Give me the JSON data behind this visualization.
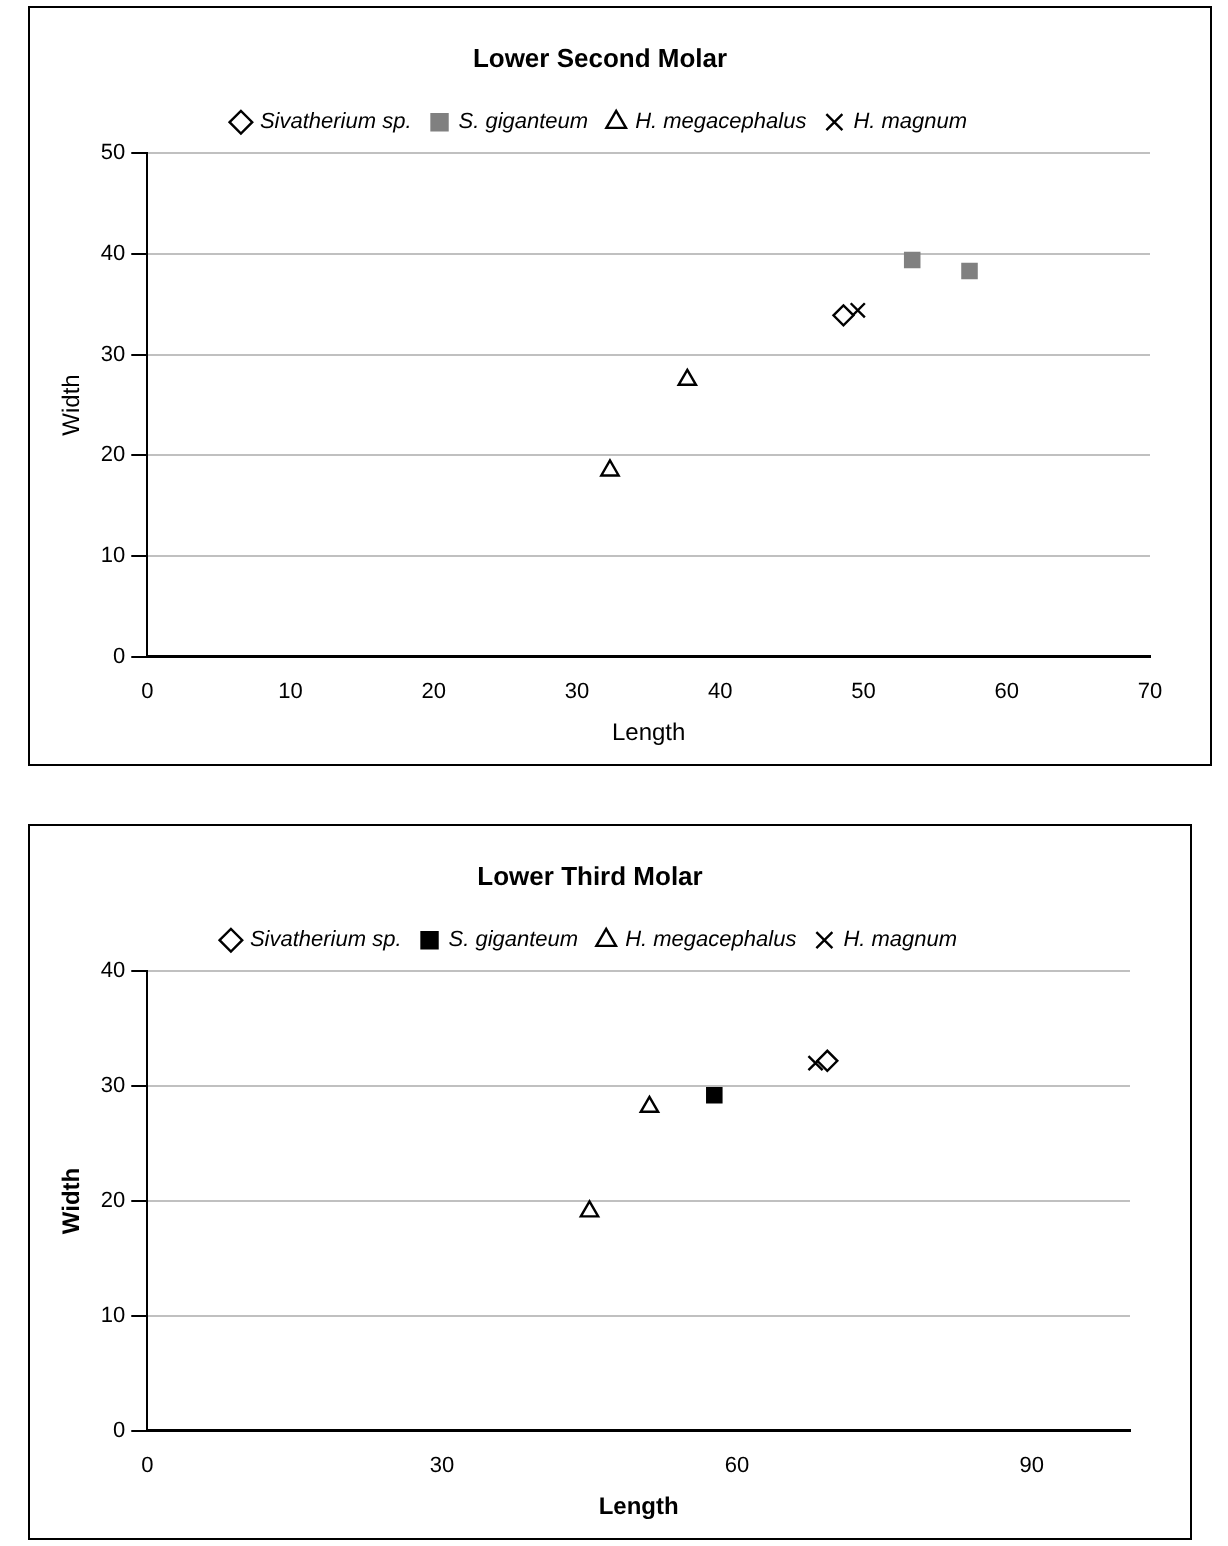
{
  "chart_data": [
    {
      "type": "scatter",
      "title": "Lower Second Molar",
      "xlabel": "Length",
      "ylabel": "Width",
      "xlim": [
        0,
        70
      ],
      "xticks": [
        0,
        10,
        20,
        30,
        40,
        50,
        60,
        70
      ],
      "ylim": [
        0,
        50
      ],
      "yticks": [
        0,
        10,
        20,
        30,
        40,
        50
      ],
      "grid": "y",
      "legend": "top",
      "series": [
        {
          "name": "Sivatherium sp.",
          "color": "#000000",
          "marker": "diamond",
          "x": [
            48.6
          ],
          "values": [
            33.9
          ]
        },
        {
          "name": "S. giganteum",
          "color": "#808080",
          "marker": "square",
          "x": [
            53.4,
            57.4
          ],
          "values": [
            39.4,
            38.3
          ]
        },
        {
          "name": "H. megacephalus",
          "color": "#000000",
          "marker": "triangle",
          "x": [
            32.3,
            37.7
          ],
          "values": [
            18.5,
            27.5
          ]
        },
        {
          "name": "H. magnum",
          "color": "#000000",
          "marker": "cross",
          "x": [
            49.6
          ],
          "values": [
            34.4
          ]
        }
      ]
    },
    {
      "type": "scatter",
      "title": "Lower Third Molar",
      "xlabel": "Length",
      "ylabel": "Width",
      "xlim": [
        0,
        100
      ],
      "xticks": [
        0,
        30,
        60,
        90
      ],
      "ylim": [
        0,
        40
      ],
      "yticks": [
        0,
        10,
        20,
        30,
        40
      ],
      "grid": "y",
      "legend": "top",
      "series": [
        {
          "name": "Sivatherium sp.",
          "color": "#000000",
          "marker": "diamond",
          "x": [
            69.2
          ],
          "values": [
            32.2
          ]
        },
        {
          "name": "S. giganteum",
          "color": "#000000",
          "marker": "square",
          "x": [
            57.7
          ],
          "values": [
            29.2
          ]
        },
        {
          "name": "H. megacephalus",
          "color": "#000000",
          "marker": "triangle",
          "x": [
            45.0,
            51.1
          ],
          "values": [
            19.1,
            28.2
          ]
        },
        {
          "name": "H. magnum",
          "color": "#000000",
          "marker": "cross",
          "x": [
            68.0
          ],
          "values": [
            32.0
          ]
        }
      ]
    }
  ]
}
